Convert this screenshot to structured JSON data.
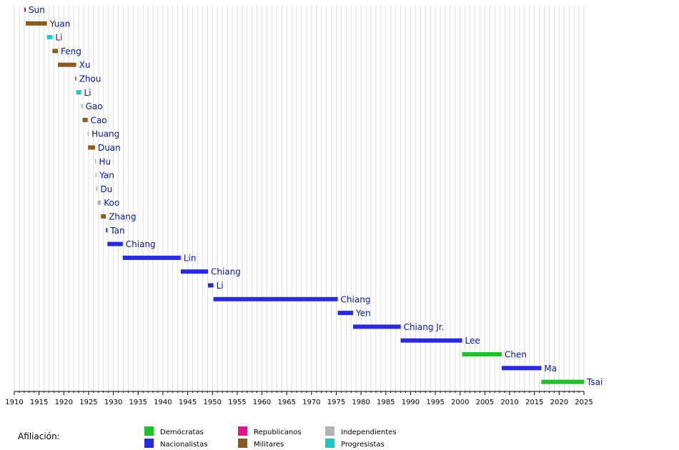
{
  "chart_data": {
    "type": "timeline",
    "x_range": [
      1910,
      2025
    ],
    "x_ticks": [
      1910,
      1915,
      1920,
      1925,
      1930,
      1935,
      1940,
      1945,
      1950,
      1955,
      1960,
      1965,
      1970,
      1975,
      1980,
      1985,
      1990,
      1995,
      2000,
      2005,
      2010,
      2015,
      2020,
      2025
    ],
    "grid": true,
    "affiliation_colors": {
      "Demócratas": "#22c12b",
      "Nacionalistas": "#2929e0",
      "Republicanos": "#ec0f89",
      "Militares": "#8b5a1e",
      "Independientes": "#b3b3b3",
      "Progresistas": "#19c9c9"
    },
    "bars": [
      {
        "label": "Sun",
        "start": 1912.0,
        "end": 1912.3,
        "affiliation": "Republicanos"
      },
      {
        "label": "Yuan",
        "start": 1912.3,
        "end": 1916.6,
        "affiliation": "Militares"
      },
      {
        "label": "Li",
        "start": 1916.6,
        "end": 1917.7,
        "affiliation": "Progresistas"
      },
      {
        "label": "Feng",
        "start": 1917.7,
        "end": 1918.8,
        "affiliation": "Militares"
      },
      {
        "label": "Xu",
        "start": 1918.8,
        "end": 1922.5,
        "affiliation": "Militares"
      },
      {
        "label": "Zhou",
        "start": 1922.3,
        "end": 1922.5,
        "affiliation": "Militares"
      },
      {
        "label": "Li",
        "start": 1922.5,
        "end": 1923.5,
        "affiliation": "Progresistas"
      },
      {
        "label": "Gao",
        "start": 1923.5,
        "end": 1923.8,
        "affiliation": "Independientes"
      },
      {
        "label": "Cao",
        "start": 1923.8,
        "end": 1924.8,
        "affiliation": "Militares"
      },
      {
        "label": "Huang",
        "start": 1924.8,
        "end": 1924.9,
        "affiliation": "Independientes"
      },
      {
        "label": "Duan",
        "start": 1924.9,
        "end": 1926.3,
        "affiliation": "Militares"
      },
      {
        "label": "Hu",
        "start": 1926.3,
        "end": 1926.4,
        "affiliation": "Independientes"
      },
      {
        "label": "Yan",
        "start": 1926.4,
        "end": 1926.5,
        "affiliation": "Independientes"
      },
      {
        "label": "Du",
        "start": 1926.5,
        "end": 1926.8,
        "affiliation": "Independientes"
      },
      {
        "label": "Koo",
        "start": 1926.8,
        "end": 1927.5,
        "affiliation": "Independientes"
      },
      {
        "label": "Zhang",
        "start": 1927.5,
        "end": 1928.5,
        "affiliation": "Militares"
      },
      {
        "label": "Tan",
        "start": 1928.5,
        "end": 1928.8,
        "affiliation": "Nacionalistas"
      },
      {
        "label": "Chiang",
        "start": 1928.8,
        "end": 1931.9,
        "affiliation": "Nacionalistas"
      },
      {
        "label": "Lin",
        "start": 1931.9,
        "end": 1943.6,
        "affiliation": "Nacionalistas"
      },
      {
        "label": "Chiang",
        "start": 1943.6,
        "end": 1949.1,
        "affiliation": "Nacionalistas"
      },
      {
        "label": "Li",
        "start": 1949.1,
        "end": 1950.2,
        "affiliation": "Nacionalistas"
      },
      {
        "label": "Chiang",
        "start": 1950.2,
        "end": 1975.3,
        "affiliation": "Nacionalistas"
      },
      {
        "label": "Yen",
        "start": 1975.3,
        "end": 1978.4,
        "affiliation": "Nacionalistas"
      },
      {
        "label": "Chiang Jr.",
        "start": 1978.4,
        "end": 1988.0,
        "affiliation": "Nacionalistas"
      },
      {
        "label": "Lee",
        "start": 1988.0,
        "end": 2000.4,
        "affiliation": "Nacionalistas"
      },
      {
        "label": "Chen",
        "start": 2000.4,
        "end": 2008.4,
        "affiliation": "Demócratas"
      },
      {
        "label": "Ma",
        "start": 2008.4,
        "end": 2016.4,
        "affiliation": "Nacionalistas"
      },
      {
        "label": "Tsai",
        "start": 2016.4,
        "end": 2025.0,
        "affiliation": "Demócratas"
      }
    ],
    "legend": {
      "title": "Afiliación:",
      "entries": [
        "Demócratas",
        "Nacionalistas",
        "Republicanos",
        "Militares",
        "Independientes",
        "Progresistas"
      ]
    }
  }
}
